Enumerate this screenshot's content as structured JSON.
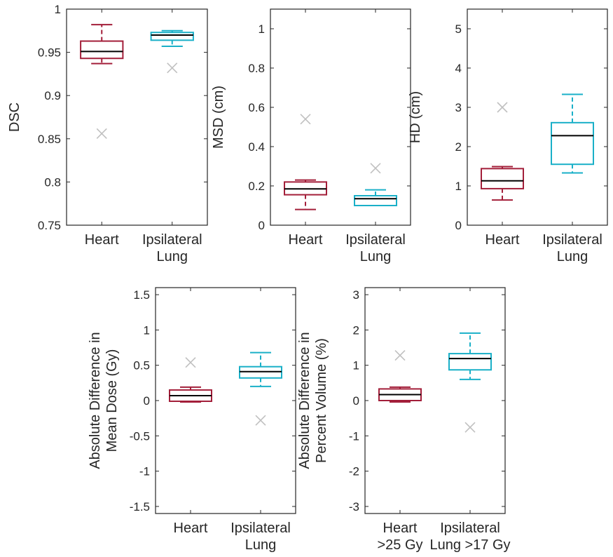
{
  "colors": {
    "heart": "#a31f3a",
    "lung": "#1ab0c8",
    "outlier": "#c0c0c0",
    "median": "#000000",
    "axis": "#262626"
  },
  "chart_data": [
    {
      "type": "box",
      "ylabel": [
        "DSC"
      ],
      "ylim": [
        0.75,
        1.0
      ],
      "yticks": [
        0.75,
        0.8,
        0.85,
        0.9,
        0.95,
        1
      ],
      "yticklabels": [
        "0.75",
        "0.8",
        "0.85",
        "0.9",
        "0.95",
        "1"
      ],
      "categories": [
        [
          "Heart"
        ],
        [
          "Ipsilateral",
          "Lung"
        ]
      ],
      "boxes": [
        {
          "series": "heart",
          "whisker_low": 0.937,
          "q1": 0.943,
          "median": 0.951,
          "q3": 0.963,
          "whisker_high": 0.982,
          "outliers": [
            0.856
          ]
        },
        {
          "series": "lung",
          "whisker_low": 0.957,
          "q1": 0.964,
          "median": 0.97,
          "q3": 0.973,
          "whisker_high": 0.975,
          "outliers": [
            0.932
          ]
        }
      ]
    },
    {
      "type": "box",
      "ylabel": [
        "MSD (cm)"
      ],
      "ylim": [
        0,
        1.1
      ],
      "yticks": [
        0,
        0.2,
        0.4,
        0.6,
        0.8,
        1
      ],
      "yticklabels": [
        "0",
        "0.2",
        "0.4",
        "0.6",
        "0.8",
        "1"
      ],
      "categories": [
        [
          "Heart"
        ],
        [
          "Ipsilateral",
          "Lung"
        ]
      ],
      "boxes": [
        {
          "series": "heart",
          "whisker_low": 0.08,
          "q1": 0.155,
          "median": 0.185,
          "q3": 0.22,
          "whisker_high": 0.23,
          "outliers": [
            0.54
          ]
        },
        {
          "series": "lung",
          "whisker_low": 0.1,
          "q1": 0.1,
          "median": 0.135,
          "q3": 0.15,
          "whisker_high": 0.18,
          "outliers": [
            0.29
          ]
        }
      ]
    },
    {
      "type": "box",
      "ylabel": [
        "HD (cm)"
      ],
      "ylim": [
        0,
        5.5
      ],
      "yticks": [
        0,
        1,
        2,
        3,
        4,
        5
      ],
      "yticklabels": [
        "0",
        "1",
        "2",
        "3",
        "4",
        "5"
      ],
      "categories": [
        [
          "Heart"
        ],
        [
          "Ipsilateral",
          "Lung"
        ]
      ],
      "boxes": [
        {
          "series": "heart",
          "whisker_low": 0.64,
          "q1": 0.93,
          "median": 1.13,
          "q3": 1.44,
          "whisker_high": 1.49,
          "outliers": [
            3.0
          ]
        },
        {
          "series": "lung",
          "whisker_low": 1.33,
          "q1": 1.55,
          "median": 2.28,
          "q3": 2.61,
          "whisker_high": 3.33,
          "outliers": []
        }
      ]
    },
    {
      "type": "box",
      "ylabel": [
        "Absolute Difference in",
        "Mean Dose (Gy)"
      ],
      "ylim": [
        -1.6,
        1.6
      ],
      "yticks": [
        -1.5,
        -1,
        -0.5,
        0,
        0.5,
        1,
        1.5
      ],
      "yticklabels": [
        "-1.5",
        "-1",
        "-0.5",
        "0",
        "0.5",
        "1",
        "1.5"
      ],
      "categories": [
        [
          "Heart"
        ],
        [
          "Ipsilateral",
          "Lung"
        ]
      ],
      "boxes": [
        {
          "series": "heart",
          "whisker_low": -0.02,
          "q1": -0.01,
          "median": 0.07,
          "q3": 0.15,
          "whisker_high": 0.19,
          "outliers": [
            0.54
          ]
        },
        {
          "series": "lung",
          "whisker_low": 0.2,
          "q1": 0.32,
          "median": 0.41,
          "q3": 0.48,
          "whisker_high": 0.68,
          "outliers": [
            -0.28
          ]
        }
      ]
    },
    {
      "type": "box",
      "ylabel": [
        "Absolute Difference in",
        "Percent Volume (%)"
      ],
      "ylim": [
        -3.2,
        3.2
      ],
      "yticks": [
        -3,
        -2,
        -1,
        0,
        1,
        2,
        3
      ],
      "yticklabels": [
        "-3",
        "-2",
        "-1",
        "0",
        "1",
        "2",
        "3"
      ],
      "categories": [
        [
          "Heart",
          ">25 Gy"
        ],
        [
          "Ipsilateral",
          "Lung >17 Gy"
        ]
      ],
      "boxes": [
        {
          "series": "heart",
          "whisker_low": -0.04,
          "q1": 0.0,
          "median": 0.17,
          "q3": 0.33,
          "whisker_high": 0.38,
          "outliers": [
            1.28
          ]
        },
        {
          "series": "lung",
          "whisker_low": 0.6,
          "q1": 0.87,
          "median": 1.19,
          "q3": 1.33,
          "whisker_high": 1.91,
          "outliers": [
            -0.76
          ]
        }
      ]
    }
  ]
}
